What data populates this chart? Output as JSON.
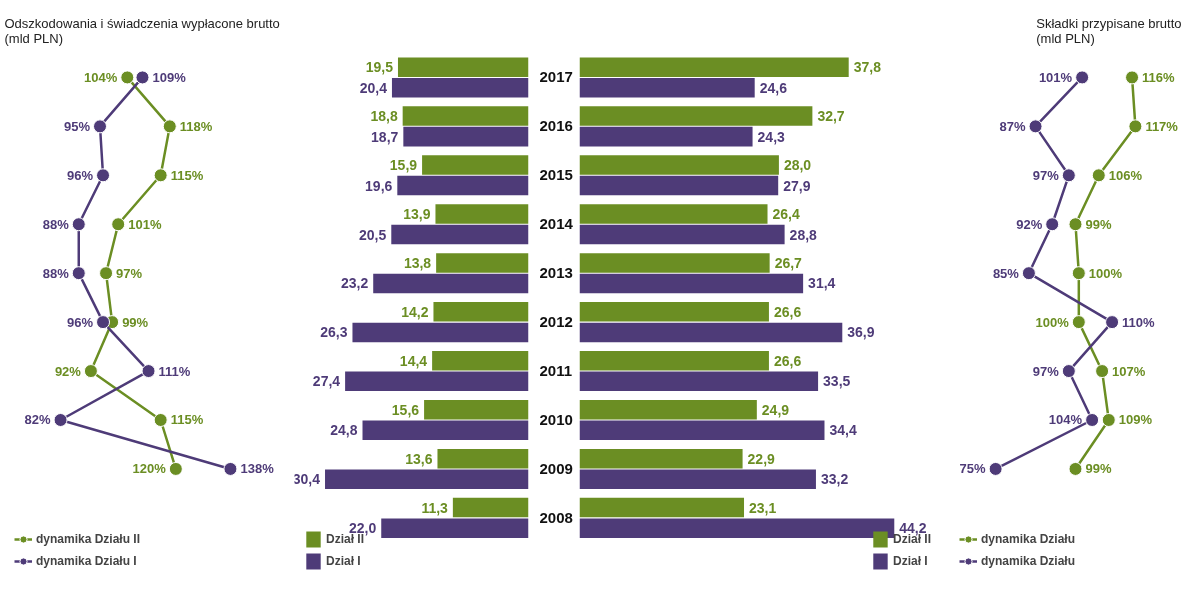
{
  "chart_data": [
    {
      "type": "line",
      "orientation": "horizontal",
      "title": "Odszkodowania i świadczenia wypłacone brutto\n(mld PLN)",
      "categories": [
        "2017",
        "2016",
        "2015",
        "2014",
        "2013",
        "2012",
        "2011",
        "2010",
        "2009"
      ],
      "tick_labels": false,
      "marker": "circle",
      "legend": "bottom left",
      "series": [
        {
          "name": "dynamika Działu II",
          "color": "#6b8e23",
          "values": [
            104,
            118,
            115,
            101,
            97,
            99,
            92,
            115,
            120
          ],
          "value_labels": [
            "104%",
            "118%",
            "115%",
            "101%",
            "97%",
            "99%",
            "92%",
            "115%",
            "120%"
          ]
        },
        {
          "name": "dynamika Działu I",
          "color": "#4e3b78",
          "values": [
            109,
            95,
            96,
            88,
            88,
            96,
            111,
            82,
            138
          ],
          "value_labels": [
            "109%",
            "95%",
            "96%",
            "88%",
            "88%",
            "96%",
            "111%",
            "82%",
            "138%"
          ]
        }
      ]
    },
    {
      "type": "bar",
      "orientation": "horizontal",
      "categories": [
        "2017",
        "2016",
        "2015",
        "2014",
        "2013",
        "2012",
        "2011",
        "2010",
        "2009",
        "2008"
      ],
      "tick_labels": "y",
      "legend": "bottom left",
      "series": [
        {
          "name": "Dział II",
          "color": "#6b8e23",
          "values": [
            19.5,
            18.8,
            15.9,
            13.9,
            13.8,
            14.2,
            14.4,
            15.6,
            13.6,
            11.3
          ],
          "value_labels": [
            "19,5",
            "18,8",
            "15,9",
            "13,9",
            "13,8",
            "14,2",
            "14,4",
            "15,6",
            "13,6",
            "11,3"
          ]
        },
        {
          "name": "Dział I",
          "color": "#4e3b78",
          "values": [
            20.4,
            18.7,
            19.6,
            20.5,
            23.2,
            26.3,
            27.4,
            24.8,
            30.4,
            22.0
          ],
          "value_labels": [
            "20,4",
            "18,7",
            "19,6",
            "20,5",
            "23,2",
            "26,3",
            "27,4",
            "24,8",
            "30,4",
            "22,0"
          ]
        }
      ]
    },
    {
      "type": "bar",
      "orientation": "horizontal",
      "categories": [
        "2017",
        "2016",
        "2015",
        "2014",
        "2013",
        "2012",
        "2011",
        "2010",
        "2009",
        "2008"
      ],
      "tick_labels": false,
      "legend": "bottom right",
      "series": [
        {
          "name": "Dział II",
          "color": "#6b8e23",
          "values": [
            37.8,
            32.7,
            28.0,
            26.4,
            26.7,
            26.6,
            26.6,
            24.9,
            22.9,
            23.1
          ],
          "value_labels": [
            "37,8",
            "32,7",
            "28,0",
            "26,4",
            "26,7",
            "26,6",
            "26,6",
            "24,9",
            "22,9",
            "23,1"
          ]
        },
        {
          "name": "Dział I",
          "color": "#4e3b78",
          "values": [
            24.6,
            24.3,
            27.9,
            28.8,
            31.4,
            36.9,
            33.5,
            34.4,
            33.2,
            44.2
          ],
          "value_labels": [
            "24,6",
            "24,3",
            "27,9",
            "28,8",
            "31,4",
            "36,9",
            "33,5",
            "34,4",
            "33,2",
            "44,2"
          ]
        }
      ]
    },
    {
      "type": "line",
      "orientation": "horizontal",
      "title": "Składki przypisane brutto\n(mld PLN)",
      "categories": [
        "2017",
        "2016",
        "2015",
        "2014",
        "2013",
        "2012",
        "2011",
        "2010",
        "2009"
      ],
      "tick_labels": false,
      "marker": "circle",
      "legend": "bottom left",
      "series": [
        {
          "name": "dynamika Działu",
          "color": "#6b8e23",
          "values": [
            116,
            117,
            106,
            99,
            100,
            100,
            107,
            109,
            99
          ],
          "value_labels": [
            "116%",
            "117%",
            "106%",
            "99%",
            "100%",
            "100%",
            "107%",
            "109%",
            "99%"
          ]
        },
        {
          "name": "dynamika Działu",
          "color": "#4e3b78",
          "values": [
            101,
            87,
            97,
            92,
            85,
            110,
            97,
            104,
            75
          ],
          "value_labels": [
            "101%",
            "87%",
            "97%",
            "92%",
            "85%",
            "110%",
            "97%",
            "104%",
            "75%"
          ]
        }
      ]
    }
  ]
}
